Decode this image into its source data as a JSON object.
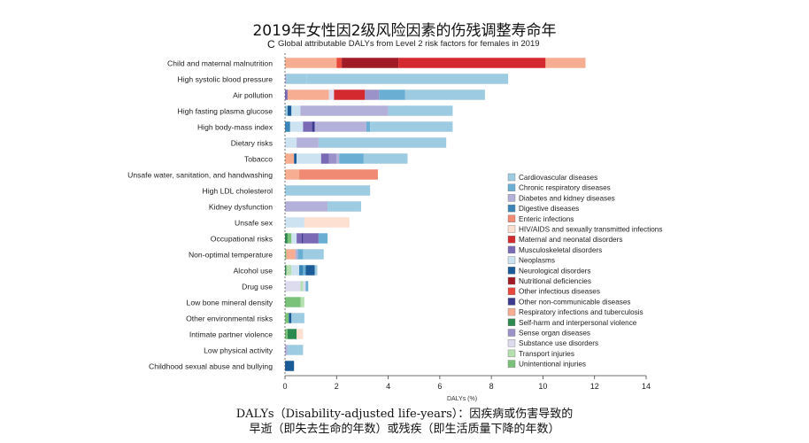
{
  "header": {
    "title": "2019年女性因2级风险因素的伤残调整寿命年",
    "panel_letter": "C",
    "subtitle": "Global attributable DALYs from Level 2 risk factors for females in 2019"
  },
  "caption": {
    "line1": "DALYs（Disability-adjusted life-years）：因疾病或伤害导致的",
    "line2": "早逝（即失去生命的年数）或残疾（即生活质量下降的年数）"
  },
  "chart_data": {
    "type": "bar",
    "orientation": "horizontal",
    "stacked": true,
    "title": "Global attributable DALYs from Level 2 risk factors for females in 2019",
    "xlabel": "DALYs (%)",
    "xlim": [
      0,
      14
    ],
    "xticks": [
      0,
      2,
      4,
      6,
      8,
      10,
      12,
      14
    ],
    "grid": false,
    "legend_position": "right",
    "causes": [
      {
        "name": "Cardiovascular diseases",
        "color": "#9dcbe1"
      },
      {
        "name": "Chronic respiratory diseases",
        "color": "#6aaed4"
      },
      {
        "name": "Diabetes and kidney diseases",
        "color": "#b3b0d9"
      },
      {
        "name": "Digestive diseases",
        "color": "#3a86b8"
      },
      {
        "name": "Enteric infections",
        "color": "#f08a72"
      },
      {
        "name": "HIV/AIDS and sexually transmitted infections",
        "color": "#fde0d2"
      },
      {
        "name": "Maternal and neonatal disorders",
        "color": "#d42a2f"
      },
      {
        "name": "Musculoskeletal disorders",
        "color": "#7a6ab5"
      },
      {
        "name": "Neoplasms",
        "color": "#cde3f1"
      },
      {
        "name": "Neurological disorders",
        "color": "#1a5b98"
      },
      {
        "name": "Nutritional deficiencies",
        "color": "#a01b25"
      },
      {
        "name": "Other infectious diseases",
        "color": "#e8483c"
      },
      {
        "name": "Other non-communicable diseases",
        "color": "#3b3a8f"
      },
      {
        "name": "Respiratory infections and tuberculosis",
        "color": "#f6ad92"
      },
      {
        "name": "Self-harm and interpersonal violence",
        "color": "#2d8a4e"
      },
      {
        "name": "Sense organ diseases",
        "color": "#9a92c8"
      },
      {
        "name": "Substance use disorders",
        "color": "#dcdcee"
      },
      {
        "name": "Transport injuries",
        "color": "#b6dfb0"
      },
      {
        "name": "Unintentional injuries",
        "color": "#7ac27a"
      }
    ],
    "categories": [
      "Child and maternal malnutrition",
      "High systolic blood pressure",
      "Air pollution",
      "High fasting plasma glucose",
      "High body-mass index",
      "Dietary risks",
      "Tobacco",
      "Unsafe water, sanitation, and handwashing",
      "High LDL cholesterol",
      "Kidney dysfunction",
      "Unsafe sex",
      "Occupational risks",
      "Non-optimal temperature",
      "Alcohol use",
      "Drug use",
      "Low bone mineral density",
      "Other environmental risks",
      "Intimate partner violence",
      "Low physical activity",
      "Childhood sexual abuse and bullying"
    ],
    "segments": [
      [
        [
          "Respiratory infections and tuberculosis",
          2.0
        ],
        [
          "Other infectious diseases",
          0.2
        ],
        [
          "Nutritional deficiencies",
          2.2
        ],
        [
          "Maternal and neonatal disorders",
          5.7
        ],
        [
          "Respiratory infections and tuberculosis",
          1.55
        ]
      ],
      [
        [
          "Diabetes and kidney diseases",
          0.05
        ],
        [
          "Cardiovascular diseases",
          0.8
        ],
        [
          "Cardiovascular diseases",
          7.8
        ]
      ],
      [
        [
          "Musculoskeletal disorders",
          0.1
        ],
        [
          "Respiratory infections and tuberculosis",
          1.6
        ],
        [
          "Substance use disorders",
          0.2
        ],
        [
          "Maternal and neonatal disorders",
          1.2
        ],
        [
          "Sense organ diseases",
          0.55
        ],
        [
          "Chronic respiratory diseases",
          1.0
        ],
        [
          "Cardiovascular diseases",
          3.1
        ]
      ],
      [
        [
          "Cardiovascular diseases",
          0.1
        ],
        [
          "Neurological disorders",
          0.15
        ],
        [
          "Neoplasms",
          0.35
        ],
        [
          "Diabetes and kidney diseases",
          3.4
        ],
        [
          "Cardiovascular diseases",
          2.5
        ]
      ],
      [
        [
          "Digestive diseases",
          0.2
        ],
        [
          "Neoplasms",
          0.5
        ],
        [
          "Musculoskeletal disorders",
          0.35
        ],
        [
          "Other non-communicable diseases",
          0.1
        ],
        [
          "Diabetes and kidney diseases",
          2.0
        ],
        [
          "Chronic respiratory diseases",
          0.15
        ],
        [
          "Cardiovascular diseases",
          3.2
        ]
      ],
      [
        [
          "Neoplasms",
          0.45
        ],
        [
          "Diabetes and kidney diseases",
          0.85
        ],
        [
          "Cardiovascular diseases",
          4.95
        ]
      ],
      [
        [
          "Respiratory infections and tuberculosis",
          0.35
        ],
        [
          "Neurological disorders",
          0.1
        ],
        [
          "Neoplasms",
          0.95
        ],
        [
          "Musculoskeletal disorders",
          0.3
        ],
        [
          "Sense organ diseases",
          0.3
        ],
        [
          "Diabetes and kidney diseases",
          0.1
        ],
        [
          "Chronic respiratory diseases",
          0.95
        ],
        [
          "Cardiovascular diseases",
          1.7
        ]
      ],
      [
        [
          "Respiratory infections and tuberculosis",
          0.55
        ],
        [
          "Enteric infections",
          3.05
        ]
      ],
      [
        [
          "Cardiovascular diseases",
          3.3
        ]
      ],
      [
        [
          "Diabetes and kidney diseases",
          1.65
        ],
        [
          "Cardiovascular diseases",
          1.3
        ]
      ],
      [
        [
          "Neoplasms",
          0.75
        ],
        [
          "HIV/AIDS and sexually transmitted infections",
          1.75
        ]
      ],
      [
        [
          "Self-harm and interpersonal violence",
          0.1
        ],
        [
          "Unintentional injuries",
          0.15
        ],
        [
          "Neoplasms",
          0.2
        ],
        [
          "Musculoskeletal disorders",
          0.2
        ],
        [
          "Other non-communicable diseases",
          0.05
        ],
        [
          "Musculoskeletal disorders",
          0.6
        ],
        [
          "Chronic respiratory diseases",
          0.35
        ]
      ],
      [
        [
          "Unintentional injuries",
          0.05
        ],
        [
          "Respiratory infections and tuberculosis",
          0.35
        ],
        [
          "Diabetes and kidney diseases",
          0.1
        ],
        [
          "Chronic respiratory diseases",
          0.2
        ],
        [
          "Cardiovascular diseases",
          0.8
        ]
      ],
      [
        [
          "Self-harm and interpersonal violence",
          0.05
        ],
        [
          "Transport injuries",
          0.2
        ],
        [
          "Neoplasms",
          0.3
        ],
        [
          "Digestive diseases",
          0.15
        ],
        [
          "Chronic respiratory diseases",
          0.1
        ],
        [
          "Neurological disorders",
          0.35
        ],
        [
          "Cardiovascular diseases",
          0.1
        ]
      ],
      [
        [
          "Substance use disorders",
          0.6
        ],
        [
          "Transport injuries",
          0.1
        ],
        [
          "Substance use disorders",
          0.1
        ],
        [
          "Chronic respiratory diseases",
          0.1
        ]
      ],
      [
        [
          "Unintentional injuries",
          0.6
        ],
        [
          "Transport injuries",
          0.15
        ]
      ],
      [
        [
          "Unintentional injuries",
          0.15
        ],
        [
          "Neurological disorders",
          0.1
        ],
        [
          "Cardiovascular diseases",
          0.5
        ]
      ],
      [
        [
          "Unintentional injuries",
          0.1
        ],
        [
          "Self-harm and interpersonal violence",
          0.35
        ],
        [
          "HIV/AIDS and sexually transmitted infections",
          0.25
        ]
      ],
      [
        [
          "Diabetes and kidney diseases",
          0.1
        ],
        [
          "Cardiovascular diseases",
          0.6
        ]
      ],
      [
        [
          "Neurological disorders",
          0.35
        ]
      ]
    ]
  }
}
